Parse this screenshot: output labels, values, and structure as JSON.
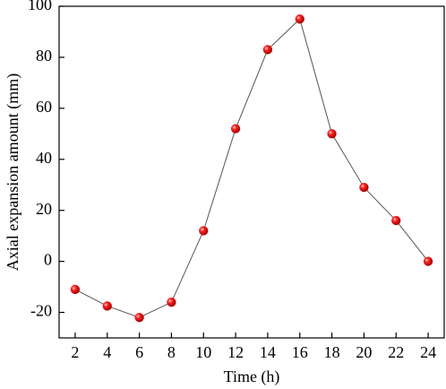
{
  "chart_data": {
    "type": "line",
    "x_label": "Time (h)",
    "y_label": "Axial expansion amount (mm)",
    "x": [
      2,
      4,
      6,
      8,
      10,
      12,
      14,
      16,
      18,
      20,
      22,
      24
    ],
    "series": [
      {
        "name": "Axial expansion",
        "color": "#e00000",
        "line_color": "#555555",
        "values": [
          -11,
          -17.5,
          -22,
          -16,
          12,
          52,
          83,
          95,
          50,
          29,
          16,
          0
        ]
      }
    ],
    "xlim": [
      1,
      25
    ],
    "xticks": [
      2,
      4,
      6,
      8,
      10,
      12,
      14,
      16,
      18,
      20,
      22,
      24
    ],
    "ylim": [
      -30,
      100
    ],
    "yticks": [
      -20,
      0,
      20,
      40,
      60,
      80,
      100
    ]
  }
}
